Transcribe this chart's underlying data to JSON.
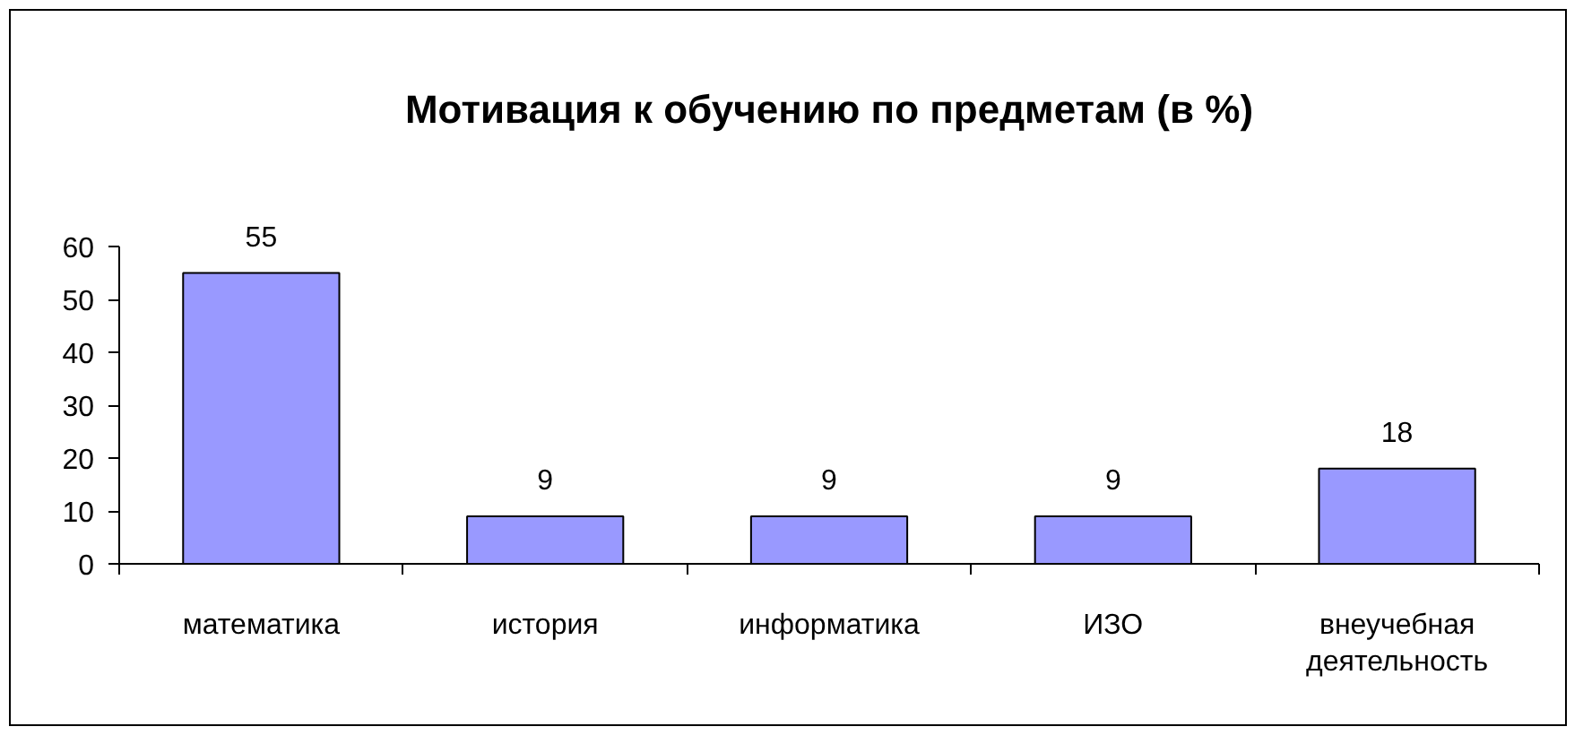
{
  "chart_data": {
    "type": "bar",
    "title": "Мотивация к обучению по предметам (в %)",
    "categories": [
      "математика",
      "история",
      "информатика",
      "ИЗО",
      "внеучебная деятельность"
    ],
    "values": [
      55,
      9,
      9,
      9,
      18
    ],
    "color": "#9999ff",
    "data_labels": true,
    "ylim": [
      0,
      60
    ],
    "yticks": [
      0,
      10,
      20,
      30,
      40,
      50,
      60
    ]
  }
}
